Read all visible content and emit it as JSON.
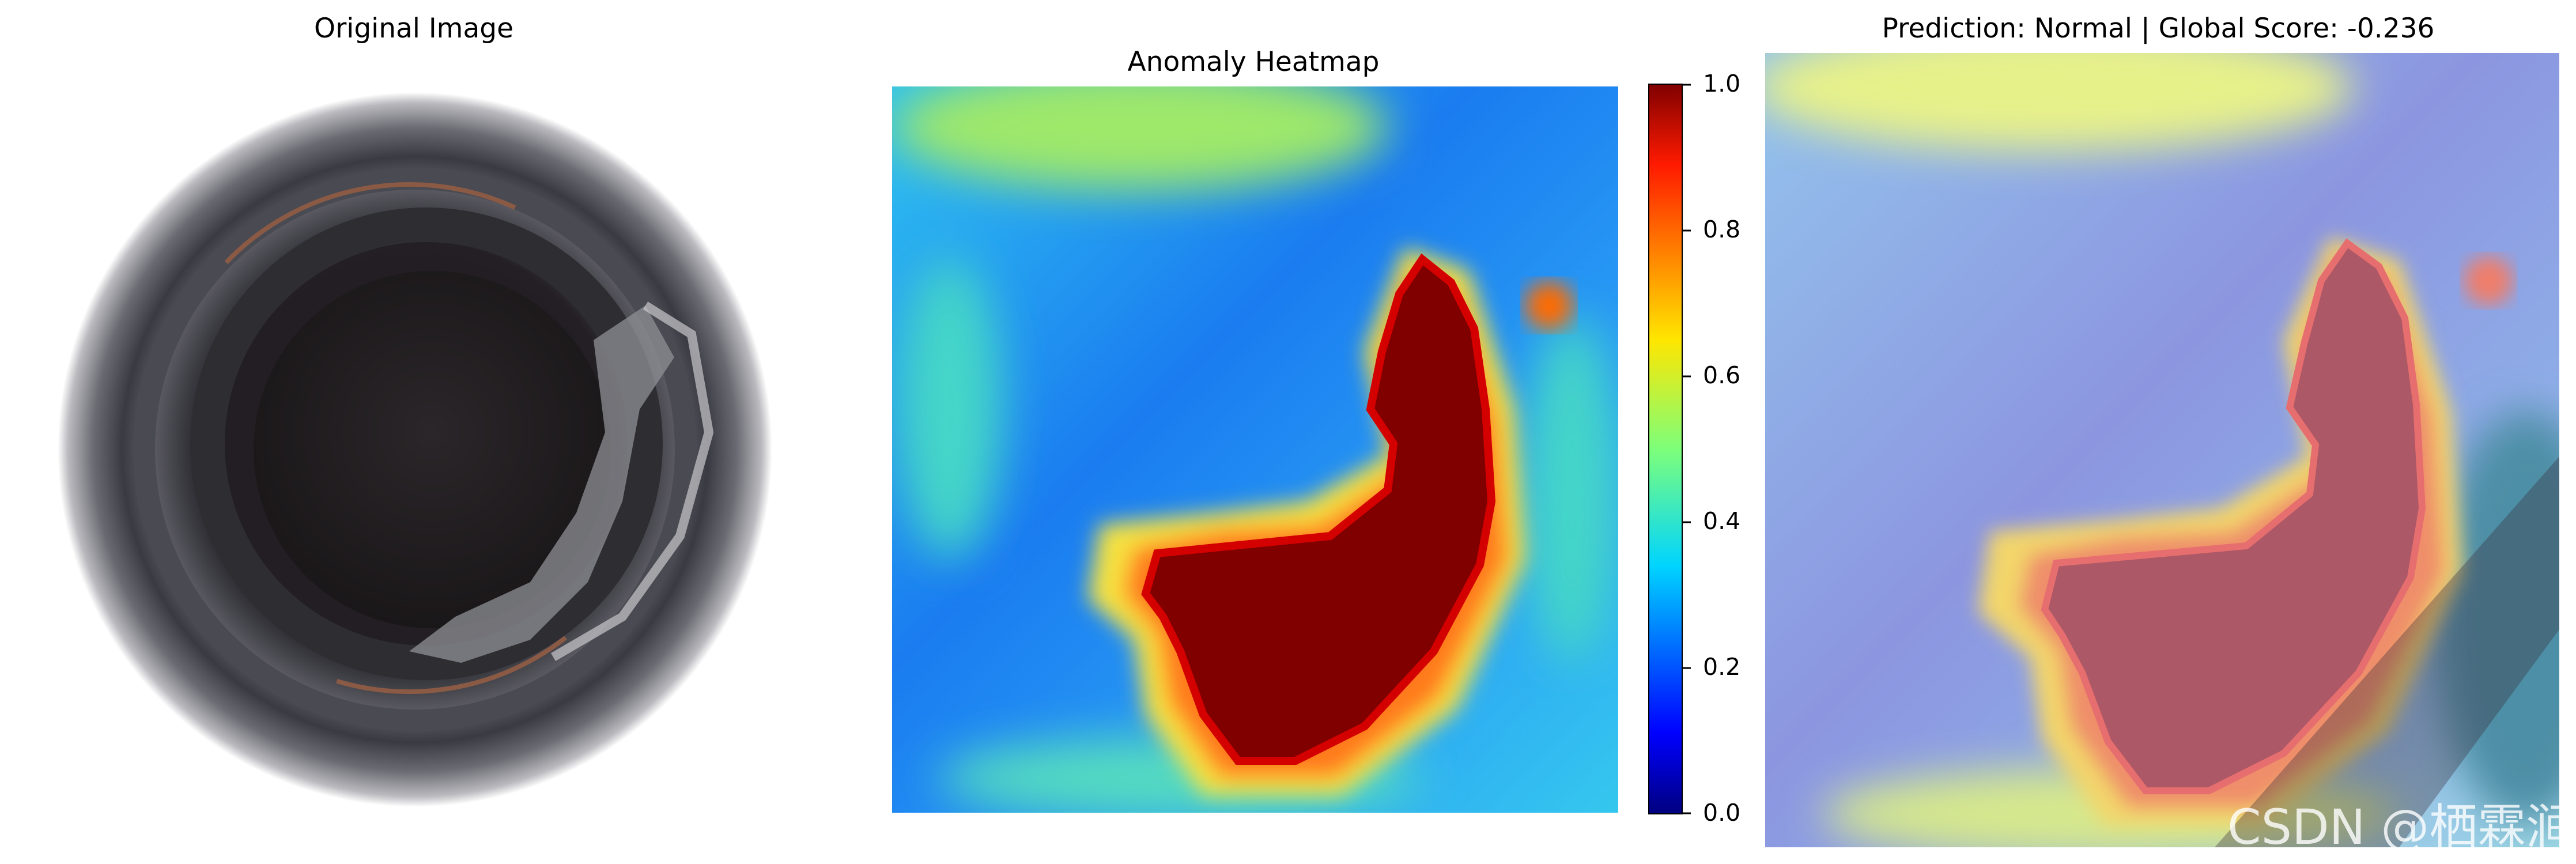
{
  "panels": {
    "original": {
      "title": "Original Image"
    },
    "heatmap": {
      "title": "Anomaly Heatmap"
    },
    "overlay": {
      "title": "Prediction: Normal | Global Score: -0.236"
    }
  },
  "watermark": "CSDN @栖霖涧",
  "colors": {
    "hot": "#800000",
    "cold": "#00007f"
  },
  "chart_data": {
    "type": "heatmap",
    "title": "Anomaly Heatmap",
    "colormap": "jet",
    "colorbar": {
      "range": [
        0.0,
        1.0
      ],
      "ticks": [
        "0.0",
        "0.2",
        "0.4",
        "0.6",
        "0.8",
        "1.0"
      ]
    },
    "prediction": "Normal",
    "global_score": -0.236
  }
}
